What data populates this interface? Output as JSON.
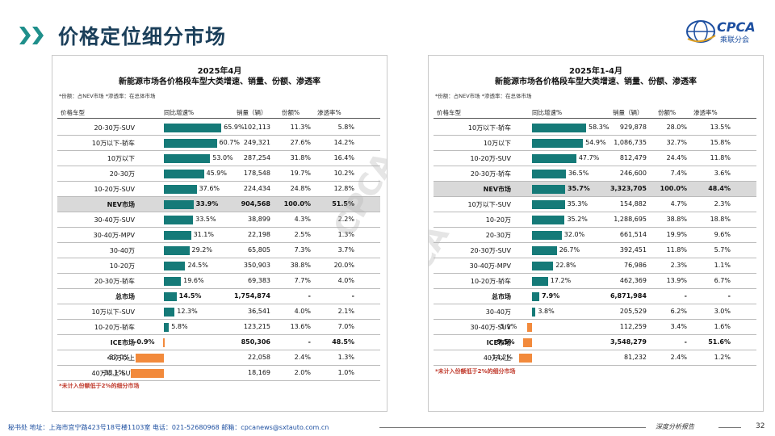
{
  "header": {
    "title": "价格定位细分市场",
    "logo_text": "CPCA",
    "logo_cn": "乘联分会",
    "colors": {
      "title": "#1b3f5a",
      "chevron": "#1f8f8b",
      "bar_positive": "#157a78",
      "bar_negative": "#f28a3c",
      "highlight_row": "#d9d9d9"
    }
  },
  "columns": {
    "category": "价格车型",
    "growth": "同比增速%",
    "volume": "销量（辆）",
    "share": "份额%",
    "penetration": "渗透率%"
  },
  "panels": [
    {
      "title_line1": "2025年4月",
      "title_line2": "新能源市场各价格段车型大类增速、销量、份额、渗透率",
      "note": "*份额：占NEV市场   *渗透率：在总体市场",
      "footnote": "*未计入份额低于2%的细分市场",
      "rows": [
        {
          "category": "20-30万-SUV",
          "growth": 65.9,
          "growth_label": "65.9%",
          "volume": "102,113",
          "share": "11.3%",
          "penetration": "5.8%"
        },
        {
          "category": "10万以下-轿车",
          "growth": 60.7,
          "growth_label": "60.7%",
          "volume": "249,321",
          "share": "27.6%",
          "penetration": "14.2%"
        },
        {
          "category": "10万以下",
          "growth": 53.0,
          "growth_label": "53.0%",
          "volume": "287,254",
          "share": "31.8%",
          "penetration": "16.4%"
        },
        {
          "category": "20-30万",
          "growth": 45.9,
          "growth_label": "45.9%",
          "volume": "178,548",
          "share": "19.7%",
          "penetration": "10.2%"
        },
        {
          "category": "10-20万-SUV",
          "growth": 37.6,
          "growth_label": "37.6%",
          "volume": "224,434",
          "share": "24.8%",
          "penetration": "12.8%"
        },
        {
          "category": "NEV市场",
          "growth": 33.9,
          "growth_label": "33.9%",
          "volume": "904,568",
          "share": "100.0%",
          "penetration": "51.5%",
          "highlight": true
        },
        {
          "category": "30-40万-SUV",
          "growth": 33.5,
          "growth_label": "33.5%",
          "volume": "38,899",
          "share": "4.3%",
          "penetration": "2.2%"
        },
        {
          "category": "30-40万-MPV",
          "growth": 31.1,
          "growth_label": "31.1%",
          "volume": "22,198",
          "share": "2.5%",
          "penetration": "1.3%"
        },
        {
          "category": "30-40万",
          "growth": 29.2,
          "growth_label": "29.2%",
          "volume": "65,805",
          "share": "7.3%",
          "penetration": "3.7%"
        },
        {
          "category": "10-20万",
          "growth": 24.5,
          "growth_label": "24.5%",
          "volume": "350,903",
          "share": "38.8%",
          "penetration": "20.0%"
        },
        {
          "category": "20-30万-轿车",
          "growth": 19.6,
          "growth_label": "19.6%",
          "volume": "69,383",
          "share": "7.7%",
          "penetration": "4.0%"
        },
        {
          "category": "总市场",
          "growth": 14.5,
          "growth_label": "14.5%",
          "volume": "1,754,874",
          "share": "-",
          "penetration": "-",
          "bold": true
        },
        {
          "category": "10万以下-SUV",
          "growth": 12.3,
          "growth_label": "12.3%",
          "volume": "36,541",
          "share": "4.0%",
          "penetration": "2.1%"
        },
        {
          "category": "10-20万-轿车",
          "growth": 5.8,
          "growth_label": "5.8%",
          "volume": "123,215",
          "share": "13.6%",
          "penetration": "7.0%"
        },
        {
          "category": "ICE市场",
          "growth": -0.9,
          "growth_label": "-0.9%",
          "volume": "850,306",
          "share": "-",
          "penetration": "48.5%",
          "bold": true
        },
        {
          "category": "40万以上",
          "growth": -32.0,
          "growth_label": "-32.0%",
          "volume": "22,058",
          "share": "2.4%",
          "penetration": "1.3%"
        },
        {
          "category": "40万以上-SUV",
          "growth": -38.1,
          "growth_label": "-38.1%",
          "volume": "18,169",
          "share": "2.0%",
          "penetration": "1.0%"
        }
      ]
    },
    {
      "title_line1": "2025年1-4月",
      "title_line2": "新能源市场各价格段车型大类增速、销量、份额、渗透率",
      "note": "*份额：占NEV市场   *渗透率：在总体市场",
      "footnote": "*未计入份额低于2%的细分市场",
      "rows": [
        {
          "category": "10万以下-轿车",
          "growth": 58.3,
          "growth_label": "58.3%",
          "volume": "929,878",
          "share": "28.0%",
          "penetration": "13.5%"
        },
        {
          "category": "10万以下",
          "growth": 54.9,
          "growth_label": "54.9%",
          "volume": "1,086,735",
          "share": "32.7%",
          "penetration": "15.8%"
        },
        {
          "category": "10-20万-SUV",
          "growth": 47.7,
          "growth_label": "47.7%",
          "volume": "812,479",
          "share": "24.4%",
          "penetration": "11.8%"
        },
        {
          "category": "20-30万-轿车",
          "growth": 36.5,
          "growth_label": "36.5%",
          "volume": "246,600",
          "share": "7.4%",
          "penetration": "3.6%"
        },
        {
          "category": "NEV市场",
          "growth": 35.7,
          "growth_label": "35.7%",
          "volume": "3,323,705",
          "share": "100.0%",
          "penetration": "48.4%",
          "highlight": true
        },
        {
          "category": "10万以下-SUV",
          "growth": 35.3,
          "growth_label": "35.3%",
          "volume": "154,882",
          "share": "4.7%",
          "penetration": "2.3%"
        },
        {
          "category": "10-20万",
          "growth": 35.2,
          "growth_label": "35.2%",
          "volume": "1,288,695",
          "share": "38.8%",
          "penetration": "18.8%"
        },
        {
          "category": "20-30万",
          "growth": 32.0,
          "growth_label": "32.0%",
          "volume": "661,514",
          "share": "19.9%",
          "penetration": "9.6%"
        },
        {
          "category": "20-30万-SUV",
          "growth": 26.7,
          "growth_label": "26.7%",
          "volume": "392,451",
          "share": "11.8%",
          "penetration": "5.7%"
        },
        {
          "category": "30-40万-MPV",
          "growth": 22.8,
          "growth_label": "22.8%",
          "volume": "76,986",
          "share": "2.3%",
          "penetration": "1.1%"
        },
        {
          "category": "10-20万-轿车",
          "growth": 17.2,
          "growth_label": "17.2%",
          "volume": "462,369",
          "share": "13.9%",
          "penetration": "6.7%"
        },
        {
          "category": "总市场",
          "growth": 7.9,
          "growth_label": "7.9%",
          "volume": "6,871,984",
          "share": "-",
          "penetration": "-",
          "bold": true
        },
        {
          "category": "30-40万",
          "growth": 3.8,
          "growth_label": "3.8%",
          "volume": "205,529",
          "share": "6.2%",
          "penetration": "3.0%"
        },
        {
          "category": "30-40万-SUV",
          "growth": -5.1,
          "growth_label": "-5.1%",
          "volume": "112,259",
          "share": "3.4%",
          "penetration": "1.6%"
        },
        {
          "category": "ICE市场",
          "growth": -9.5,
          "growth_label": "-9.5%",
          "volume": "3,548,279",
          "share": "-",
          "penetration": "51.6%",
          "bold": true
        },
        {
          "category": "40万以上",
          "growth": -14.2,
          "growth_label": "-14.2%",
          "volume": "81,232",
          "share": "2.4%",
          "penetration": "1.2%"
        }
      ]
    }
  ],
  "footer": {
    "contact": "秘书处  地址：上海市宜宁路423号18号楼1103室  电话：021-52680968  邮箱：cpcanews@sxtauto.com.cn",
    "slogan": "深度分析报告",
    "page": "32"
  }
}
